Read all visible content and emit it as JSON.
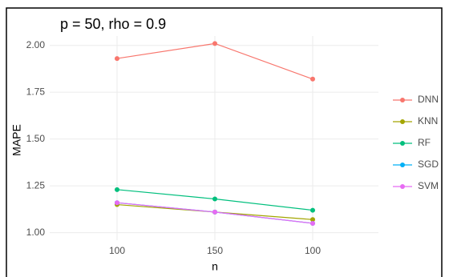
{
  "chart_data": {
    "type": "line",
    "title": "p = 50, rho = 0.9",
    "x_label": "n",
    "y_label": "MAPE",
    "categories": [
      "100",
      "150",
      "100"
    ],
    "series": [
      {
        "name": "DNN",
        "color": "#F8766D",
        "values": [
          1.93,
          2.01,
          1.82
        ]
      },
      {
        "name": "KNN",
        "color": "#A3A500",
        "values": [
          1.15,
          1.11,
          1.07
        ]
      },
      {
        "name": "RF",
        "color": "#00BF7D",
        "values": [
          1.23,
          1.18,
          1.12
        ]
      },
      {
        "name": "SGD",
        "color": "#00B0F6",
        "values": [
          1.16,
          1.11,
          1.05
        ]
      },
      {
        "name": "SVM",
        "color": "#E76BF3",
        "values": [
          1.16,
          1.11,
          1.05
        ]
      }
    ],
    "ylim": [
      0.96,
      2.05
    ],
    "yticks": [
      {
        "value": 1,
        "label": "1.00"
      },
      {
        "value": 1.25,
        "label": "1.25"
      },
      {
        "value": 1.5,
        "label": "1.50"
      },
      {
        "value": 1.75,
        "label": "1.75"
      },
      {
        "value": 2,
        "label": "2.00"
      }
    ],
    "grid": true,
    "legend": "right"
  }
}
